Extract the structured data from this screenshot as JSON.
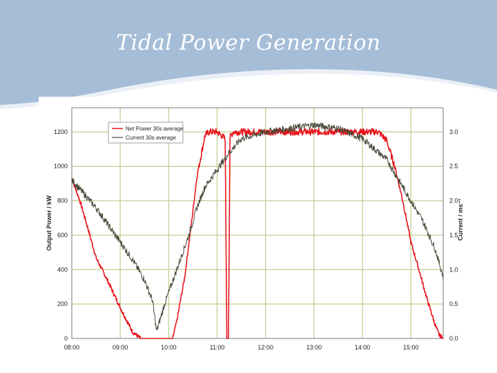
{
  "slide": {
    "title": "Tidal Power Generation"
  },
  "colors": {
    "banner": "#a6bdd7",
    "power": "#e8141b",
    "current": "#4a4a3a",
    "grid": "#c6d29a"
  },
  "chart_data": {
    "type": "line",
    "title": "",
    "xlabel": "",
    "ylabel": "Output Power / kW",
    "y2label": "Current / ms⁻¹",
    "xlim": [
      "08:00",
      "15:40"
    ],
    "ylim": [
      0,
      1340
    ],
    "y2lim": [
      0,
      3.35
    ],
    "grid": true,
    "legend_position": "top-left",
    "x_ticks": [
      "08:00",
      "09:00",
      "10:00",
      "11:00",
      "12:00",
      "13:00",
      "14:00",
      "15:00"
    ],
    "y_ticks": [
      "0",
      "200",
      "400",
      "600",
      "800",
      "1000",
      "1200"
    ],
    "y2_ticks": [
      "0.0",
      "0.5",
      "1.0",
      "1.5",
      "2.0",
      "2.5",
      "3.0"
    ],
    "series": [
      {
        "name": "Net Power 30s average",
        "axis": "left",
        "x": [
          "08:00",
          "08:10",
          "08:20",
          "08:30",
          "08:45",
          "09:00",
          "09:15",
          "09:25",
          "09:40",
          "09:55",
          "10:05",
          "10:10",
          "10:20",
          "10:30",
          "10:35",
          "10:45",
          "10:50",
          "11:00",
          "11:05",
          "11:10",
          "11:12",
          "11:14",
          "11:16",
          "11:20",
          "11:30",
          "12:00",
          "13:00",
          "14:00",
          "14:20",
          "14:30",
          "14:40",
          "14:50",
          "15:00",
          "15:10",
          "15:20",
          "15:30",
          "15:35",
          "15:40"
        ],
        "values": [
          930,
          800,
          640,
          470,
          330,
          180,
          40,
          0,
          0,
          0,
          0,
          100,
          360,
          740,
          940,
          1180,
          1200,
          1200,
          1180,
          1160,
          0,
          0,
          1170,
          1200,
          1200,
          1200,
          1200,
          1200,
          1200,
          1150,
          1000,
          800,
          560,
          400,
          230,
          80,
          20,
          0
        ]
      },
      {
        "name": "Current 30s average",
        "axis": "right",
        "x": [
          "08:00",
          "08:15",
          "08:30",
          "08:45",
          "09:00",
          "09:15",
          "09:30",
          "09:40",
          "09:45",
          "09:55",
          "10:10",
          "10:25",
          "10:35",
          "10:45",
          "11:00",
          "11:15",
          "11:30",
          "12:00",
          "12:30",
          "13:00",
          "13:30",
          "14:00",
          "14:30",
          "14:45",
          "15:00",
          "15:15",
          "15:30",
          "15:40"
        ],
        "values": [
          2.3,
          2.1,
          1.9,
          1.65,
          1.4,
          1.15,
          0.85,
          0.55,
          0.1,
          0.5,
          1.0,
          1.5,
          1.9,
          2.2,
          2.45,
          2.7,
          2.9,
          3.0,
          3.05,
          3.1,
          3.05,
          2.9,
          2.6,
          2.3,
          2.0,
          1.7,
          1.3,
          0.9
        ]
      }
    ]
  }
}
